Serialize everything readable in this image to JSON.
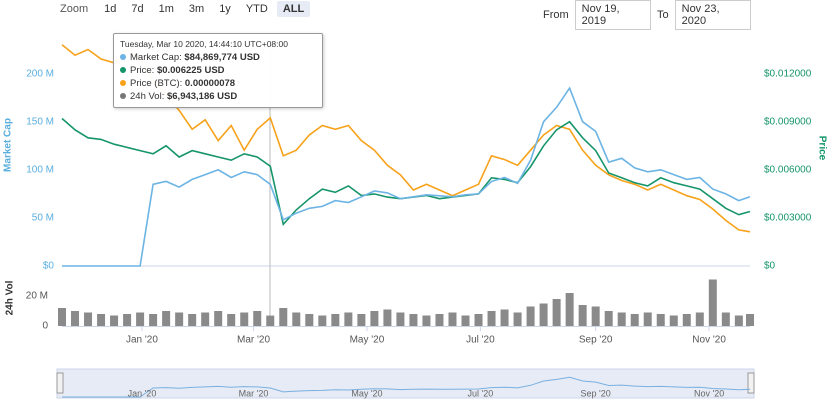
{
  "toolbar": {
    "zoom_label": "Zoom",
    "buttons": [
      "1d",
      "7d",
      "1m",
      "3m",
      "1y",
      "YTD",
      "ALL"
    ],
    "active": "ALL",
    "from_label": "From",
    "from": "Nov 19, 2019",
    "to_label": "To",
    "to": "Nov 23, 2020"
  },
  "tooltip": {
    "title": "Tuesday, Mar 10 2020, 14:44:10 UTC+08:00",
    "items": [
      {
        "label": "Market Cap:",
        "value": "$84,869,774 USD",
        "color": "#6cb4e4"
      },
      {
        "label": "Price:",
        "value": "$0.006225 USD",
        "color": "#16956a"
      },
      {
        "label": "Price (BTC):",
        "value": "0.00000078",
        "color": "#f7a21b"
      },
      {
        "label": "24h Vol:",
        "value": "$6,943,186 USD",
        "color": "#777777"
      }
    ]
  },
  "chart_data": [
    {
      "type": "line",
      "ylabel": "Market Cap",
      "y2label": "Price",
      "xlim": [
        "2019-11-19",
        "2020-11-23"
      ],
      "x": [
        "2019-11-19",
        "2019-11-26",
        "2019-12-03",
        "2019-12-10",
        "2019-12-17",
        "2019-12-24",
        "2019-12-31",
        "2020-01-07",
        "2020-01-14",
        "2020-01-21",
        "2020-01-28",
        "2020-02-04",
        "2020-02-11",
        "2020-02-18",
        "2020-02-25",
        "2020-03-03",
        "2020-03-10",
        "2020-03-17",
        "2020-03-24",
        "2020-03-31",
        "2020-04-07",
        "2020-04-14",
        "2020-04-21",
        "2020-04-28",
        "2020-05-05",
        "2020-05-12",
        "2020-05-19",
        "2020-05-26",
        "2020-06-02",
        "2020-06-09",
        "2020-06-16",
        "2020-06-23",
        "2020-06-30",
        "2020-07-07",
        "2020-07-14",
        "2020-07-21",
        "2020-07-28",
        "2020-08-04",
        "2020-08-11",
        "2020-08-18",
        "2020-08-25",
        "2020-09-01",
        "2020-09-08",
        "2020-09-15",
        "2020-09-22",
        "2020-09-29",
        "2020-10-06",
        "2020-10-13",
        "2020-10-20",
        "2020-10-27",
        "2020-11-03",
        "2020-11-10",
        "2020-11-17",
        "2020-11-23"
      ],
      "series": [
        {
          "color": "#6cb4e4",
          "axis": "y",
          "values": [
            0,
            0,
            0,
            0,
            0,
            0,
            0,
            85000000,
            88000000,
            82000000,
            90000000,
            95000000,
            100000000,
            92000000,
            98000000,
            95000000,
            84869774,
            48000000,
            55000000,
            60000000,
            62000000,
            68000000,
            66000000,
            72000000,
            78000000,
            76000000,
            70000000,
            72000000,
            74000000,
            73000000,
            72000000,
            74000000,
            75000000,
            88000000,
            92000000,
            86000000,
            110000000,
            150000000,
            165000000,
            185000000,
            150000000,
            140000000,
            108000000,
            112000000,
            102000000,
            98000000,
            100000000,
            95000000,
            90000000,
            92000000,
            80000000,
            75000000,
            68000000,
            72000000
          ]
        },
        {
          "color": "#16956a",
          "axis": "y2",
          "values": [
            0.0092,
            0.0085,
            0.008,
            0.0079,
            0.0076,
            0.0074,
            0.0072,
            0.007,
            0.0075,
            0.0068,
            0.0072,
            0.007,
            0.0068,
            0.0066,
            0.007,
            0.0068,
            0.006225,
            0.0026,
            0.0035,
            0.0042,
            0.0048,
            0.0046,
            0.005,
            0.0044,
            0.0045,
            0.0043,
            0.0042,
            0.0043,
            0.0044,
            0.0042,
            0.0043,
            0.0044,
            0.0045,
            0.0055,
            0.0054,
            0.0052,
            0.0062,
            0.0075,
            0.0085,
            0.009,
            0.008,
            0.0072,
            0.0058,
            0.0055,
            0.0052,
            0.005,
            0.0055,
            0.0052,
            0.005,
            0.0048,
            0.0042,
            0.0036,
            0.0032,
            0.0034
          ]
        },
        {
          "color": "#f7a21b",
          "axis": "y3",
          "values": [
            1.165e-06,
            1.11e-06,
            1.14e-06,
            1.09e-06,
            1.07e-06,
            1.14e-06,
            1.09e-06,
            9.8e-07,
            9e-07,
            8.2e-07,
            7.2e-07,
            7.7e-07,
            6.6e-07,
            7.4e-07,
            6.1e-07,
            7.2e-07,
            7.8e-07,
            5.8e-07,
            6.1e-07,
            6.9e-07,
            7.4e-07,
            7.2e-07,
            7.4e-07,
            6.6e-07,
            6.1e-07,
            5.3e-07,
            4.8e-07,
            4e-07,
            4.3e-07,
            4e-07,
            3.7e-07,
            4e-07,
            4.3e-07,
            5.8e-07,
            5.6e-07,
            5.3e-07,
            6.1e-07,
            6.9e-07,
            7.4e-07,
            7.2e-07,
            6.1e-07,
            5.3e-07,
            4.8e-07,
            4.5e-07,
            4.3e-07,
            4e-07,
            4.3e-07,
            4e-07,
            3.7e-07,
            3.5e-07,
            3e-07,
            2.4e-07,
            1.9e-07,
            1.8e-07
          ]
        }
      ],
      "ylim": [
        0,
        235000000
      ],
      "yticks": [
        {
          "value": 0,
          "label": "$0"
        },
        {
          "value": 50000000,
          "label": "50 M"
        },
        {
          "value": 100000000,
          "label": "100 M"
        },
        {
          "value": 150000000,
          "label": "150 M"
        },
        {
          "value": 200000000,
          "label": "200 M"
        }
      ],
      "y2lim": [
        0,
        0.0141
      ],
      "y2ticks": [
        {
          "value": 0,
          "label": "$0"
        },
        {
          "value": 0.003,
          "label": "$0.003000"
        },
        {
          "value": 0.006,
          "label": "$0.006000"
        },
        {
          "value": 0.009,
          "label": "$0.009000"
        },
        {
          "value": 0.012,
          "label": "$0.012000"
        }
      ],
      "y3lim": [
        0,
        1.19e-06
      ],
      "grid": false
    },
    {
      "type": "bar",
      "ylabel": "24h Vol",
      "color": "#8a8a8a",
      "xlim": [
        "2019-11-19",
        "2020-11-23"
      ],
      "x": [
        "2019-11-19",
        "2019-11-26",
        "2019-12-03",
        "2019-12-10",
        "2019-12-17",
        "2019-12-24",
        "2019-12-31",
        "2020-01-07",
        "2020-01-14",
        "2020-01-21",
        "2020-01-28",
        "2020-02-04",
        "2020-02-11",
        "2020-02-18",
        "2020-02-25",
        "2020-03-03",
        "2020-03-10",
        "2020-03-17",
        "2020-03-24",
        "2020-03-31",
        "2020-04-07",
        "2020-04-14",
        "2020-04-21",
        "2020-04-28",
        "2020-05-05",
        "2020-05-12",
        "2020-05-19",
        "2020-05-26",
        "2020-06-02",
        "2020-06-09",
        "2020-06-16",
        "2020-06-23",
        "2020-06-30",
        "2020-07-07",
        "2020-07-14",
        "2020-07-21",
        "2020-07-28",
        "2020-08-04",
        "2020-08-11",
        "2020-08-18",
        "2020-08-25",
        "2020-09-01",
        "2020-09-08",
        "2020-09-15",
        "2020-09-22",
        "2020-09-29",
        "2020-10-06",
        "2020-10-13",
        "2020-10-20",
        "2020-10-27",
        "2020-11-03",
        "2020-11-10",
        "2020-11-17",
        "2020-11-23"
      ],
      "values": [
        12000000,
        10000000,
        9000000,
        8000000,
        7000000,
        8000000,
        9000000,
        8000000,
        10000000,
        9000000,
        8000000,
        9000000,
        10000000,
        8000000,
        9000000,
        10000000,
        6943186,
        12000000,
        9000000,
        8000000,
        7000000,
        8000000,
        9000000,
        8000000,
        10000000,
        11000000,
        9000000,
        8000000,
        7000000,
        8000000,
        9000000,
        7000000,
        8000000,
        10000000,
        11000000,
        9000000,
        13000000,
        15000000,
        18000000,
        22000000,
        14000000,
        13000000,
        10000000,
        9000000,
        8000000,
        9000000,
        8000000,
        7000000,
        8000000,
        9000000,
        31000000,
        9000000,
        7000000,
        8000000
      ],
      "ylim": [
        0,
        32000000
      ],
      "yticks": [
        0,
        {
          "value": 20000000,
          "label": "20 M"
        }
      ],
      "xticks": [
        {
          "value": "2020-01-01",
          "label": "Jan '20"
        },
        {
          "value": "2020-03-01",
          "label": "Mar '20"
        },
        {
          "value": "2020-05-01",
          "label": "May '20"
        },
        {
          "value": "2020-07-01",
          "label": "Jul '20"
        },
        {
          "value": "2020-09-01",
          "label": "Sep '20"
        },
        {
          "value": "2020-11-01",
          "label": "Nov '20"
        }
      ]
    }
  ]
}
